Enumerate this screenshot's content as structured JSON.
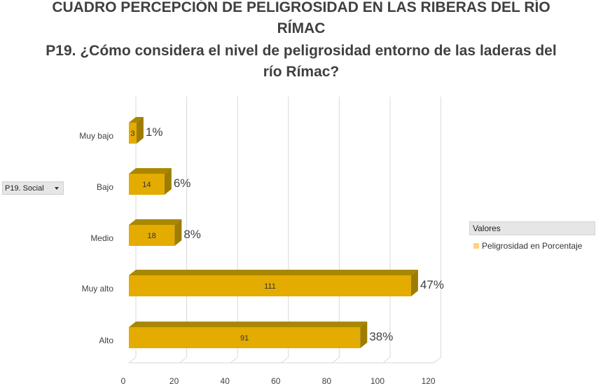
{
  "title": {
    "line1": "CUADRO PERCEPCIÓN DE PELIGROSIDAD EN LAS RIBERAS DEL RÍO RÍMAC",
    "line2": "P19. ¿Cómo considera el nivel de peligrosidad entorno de las laderas del río Rímac?"
  },
  "filter": {
    "label": "P19. Social",
    "icon": "dropdown-arrow-icon"
  },
  "legend": {
    "title": "Valores",
    "series_label": "Peligrosidad en Porcentaje",
    "swatch_color": "#ffd27f"
  },
  "chart_data": {
    "type": "bar",
    "orientation": "horizontal",
    "categories": [
      "Muy bajo",
      "Bajo",
      "Medio",
      "Muy alto",
      "Alto"
    ],
    "values": [
      3,
      14,
      18,
      111,
      91
    ],
    "percent_labels": [
      "1%",
      "6%",
      "8%",
      "47%",
      "38%"
    ],
    "xlim": [
      0,
      120
    ],
    "x_ticks": [
      0,
      20,
      40,
      60,
      80,
      100,
      120
    ],
    "grid": true,
    "legend_position": "right",
    "colors": {
      "bar_front": "#e4ab00",
      "bar_top": "#a98700",
      "bar_side": "#9d7c00",
      "grid": "#d9d9d9",
      "text": "#404040"
    }
  }
}
